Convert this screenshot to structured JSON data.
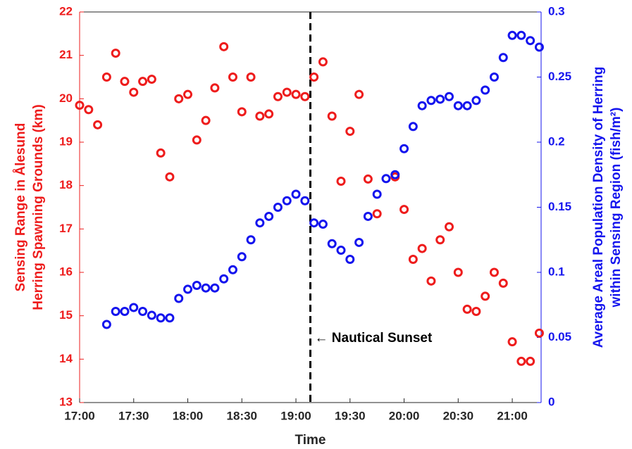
{
  "chart_data": {
    "type": "scatter",
    "x": [
      "17:00",
      "17:05",
      "17:10",
      "17:15",
      "17:20",
      "17:25",
      "17:30",
      "17:35",
      "17:40",
      "17:45",
      "17:50",
      "17:55",
      "18:00",
      "18:05",
      "18:10",
      "18:15",
      "18:20",
      "18:25",
      "18:30",
      "18:35",
      "18:40",
      "18:45",
      "18:50",
      "18:55",
      "19:00",
      "19:05",
      "19:10",
      "19:15",
      "19:20",
      "19:25",
      "19:30",
      "19:35",
      "19:40",
      "19:45",
      "19:50",
      "19:55",
      "20:00",
      "20:05",
      "20:10",
      "20:15",
      "20:20",
      "20:25",
      "20:30",
      "20:35",
      "20:40",
      "20:45",
      "20:50",
      "20:55",
      "21:00",
      "21:05",
      "21:10",
      "21:15"
    ],
    "series": [
      {
        "color": "#ee1c1c",
        "values": [
          19.85,
          19.75,
          19.4,
          20.5,
          21.05,
          20.4,
          20.15,
          20.4,
          20.45,
          18.75,
          18.2,
          20.0,
          20.1,
          19.05,
          19.5,
          20.25,
          21.2,
          20.5,
          19.7,
          20.5,
          19.6,
          19.65,
          20.05,
          20.15,
          20.1,
          20.05,
          20.5,
          20.85,
          19.6,
          18.1,
          19.25,
          20.1,
          18.15,
          17.35,
          null,
          18.2,
          17.45,
          16.3,
          16.55,
          15.8,
          16.75,
          17.05,
          16.0,
          15.15,
          15.1,
          15.45,
          16.0,
          15.75,
          14.4,
          13.95,
          13.95,
          14.6
        ]
      },
      {
        "color": "#1414ee",
        "axis": "y2",
        "values": [
          null,
          null,
          null,
          0.06,
          0.07,
          0.07,
          0.073,
          0.07,
          0.067,
          0.065,
          0.065,
          0.08,
          0.087,
          0.09,
          0.088,
          0.088,
          0.095,
          0.102,
          0.112,
          0.125,
          0.138,
          0.143,
          0.15,
          0.155,
          0.16,
          0.155,
          0.138,
          0.137,
          0.122,
          0.117,
          0.11,
          0.123,
          0.143,
          0.16,
          0.172,
          0.175,
          0.195,
          0.212,
          0.228,
          0.232,
          0.233,
          0.235,
          0.228,
          0.228,
          0.232,
          0.24,
          0.25,
          0.265,
          0.282,
          0.282,
          0.278,
          0.273
        ]
      }
    ],
    "x_label": "Time",
    "y_label": [
      "Sensing Range in Ålesund",
      "Herring Spawning Grounds (km)"
    ],
    "y2_label": [
      "Average Areal Population Density of Herring",
      "within Sensing Region (fish/m²)"
    ],
    "xlim": [
      "17:00",
      "21:16"
    ],
    "xticks": [
      "17:00",
      "17:30",
      "18:00",
      "18:30",
      "19:00",
      "19:30",
      "20:00",
      "20:30",
      "21:00"
    ],
    "ylim": [
      13,
      22
    ],
    "yticks": [
      13,
      14,
      15,
      16,
      17,
      18,
      19,
      20,
      21,
      22
    ],
    "y2lim": [
      0,
      0.3
    ],
    "y2ticks": [
      0,
      0.05,
      0.1,
      0.15,
      0.2,
      0.25,
      0.3
    ],
    "vline": {
      "x": "19:08",
      "label": "← Nautical Sunset"
    }
  }
}
